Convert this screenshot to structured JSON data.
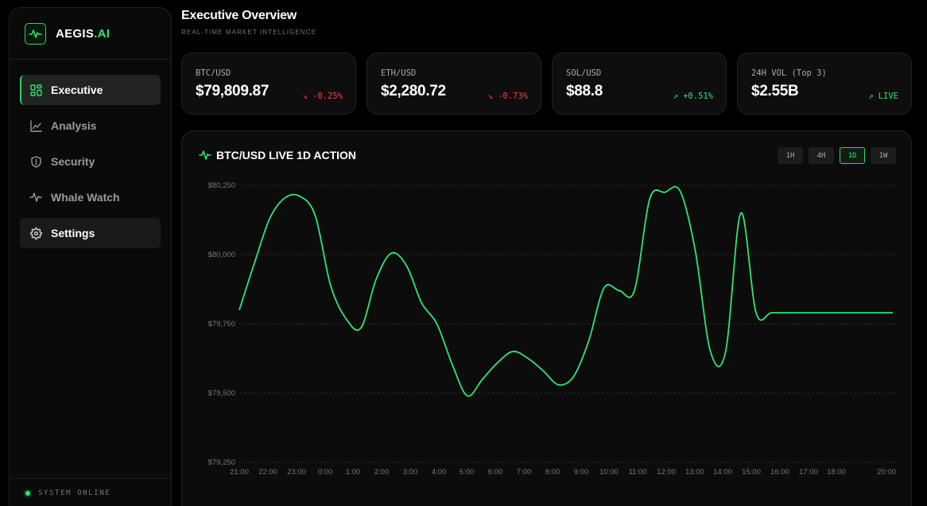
{
  "brand": {
    "name": "AEGIS",
    "accent": ".AI"
  },
  "nav": [
    {
      "label": "Executive",
      "icon": "dashboard-icon",
      "state": "active"
    },
    {
      "label": "Analysis",
      "icon": "line-chart-icon",
      "state": ""
    },
    {
      "label": "Security",
      "icon": "shield-icon",
      "state": ""
    },
    {
      "label": "Whale Watch",
      "icon": "activity-icon",
      "state": ""
    },
    {
      "label": "Settings",
      "icon": "gear-icon",
      "state": "hl"
    }
  ],
  "status": {
    "text": "SYSTEM ONLINE",
    "color": "#2ee56f"
  },
  "header": {
    "title": "Executive Overview",
    "subtitle": "REAL-TIME MARKET INTELLIGENCE"
  },
  "cards": [
    {
      "label": "BTC/USD",
      "value": "$79,809.87",
      "change": "-0.25%",
      "direction": "down"
    },
    {
      "label": "ETH/USD",
      "value": "$2,280.72",
      "change": "-0.73%",
      "direction": "down"
    },
    {
      "label": "SOL/USD",
      "value": "$88.8",
      "change": "+0.51%",
      "direction": "up"
    },
    {
      "label": "24H VOL (Top 3)",
      "value": "$2.55B",
      "change": "LIVE",
      "direction": "up"
    }
  ],
  "chart_panel": {
    "title": "BTC/USD LIVE 1D ACTION",
    "ranges": [
      "1H",
      "4H",
      "1D",
      "1W"
    ],
    "selected_range": "1D"
  },
  "colors": {
    "accent": "#2ee56f",
    "negative": "#ff4040",
    "background": "#000000",
    "panel": "#0c0c0c"
  },
  "chart_data": {
    "type": "line",
    "title": "BTC/USD LIVE 1D ACTION",
    "xlabel": "",
    "ylabel": "",
    "ylim": [
      79250,
      80250
    ],
    "yticks": [
      "$80,250",
      "$80,000",
      "$79,750",
      "$79,500",
      "$79,250"
    ],
    "ytick_values": [
      80250,
      80000,
      79750,
      79500,
      79250
    ],
    "xticks": [
      "21:00",
      "22:00",
      "23:00",
      "0:00",
      "1:00",
      "2:00",
      "3:00",
      "4:00",
      "5:00",
      "6:00",
      "7:00",
      "8:00",
      "9:00",
      "10:00",
      "11:00",
      "12:00",
      "13:00",
      "14:00",
      "15:00",
      "16:00",
      "17:00",
      "18:00",
      "20:00"
    ],
    "grid": true,
    "series": [
      {
        "color": "#2ee56f",
        "x": [
          0,
          0.5,
          1,
          1.5,
          2,
          2.5,
          3,
          3.5,
          4,
          4.5,
          5,
          5.5,
          6,
          6.5,
          7,
          7.5,
          8,
          8.5,
          9,
          9.5,
          10,
          10.5,
          11,
          11.5,
          12,
          12.5,
          13,
          13.5,
          14,
          14.5,
          15,
          15.5,
          16,
          16.5,
          17,
          17.5,
          18,
          18.5,
          19,
          19.5,
          20,
          20.5,
          21,
          21.5,
          22,
          22.5
        ],
        "y": [
          79800,
          79970,
          80130,
          80205,
          80210,
          80140,
          79890,
          79770,
          79735,
          79910,
          80005,
          79960,
          79825,
          79750,
          79605,
          79490,
          79550,
          79610,
          79650,
          79625,
          79580,
          79530,
          79560,
          79690,
          79880,
          79870,
          79870,
          80200,
          80225,
          80230,
          80015,
          79650,
          79650,
          80150,
          79790,
          79790,
          79790,
          79790,
          79790,
          79790,
          79790,
          79790,
          79790,
          79790,
          79790,
          79790
        ]
      }
    ]
  }
}
